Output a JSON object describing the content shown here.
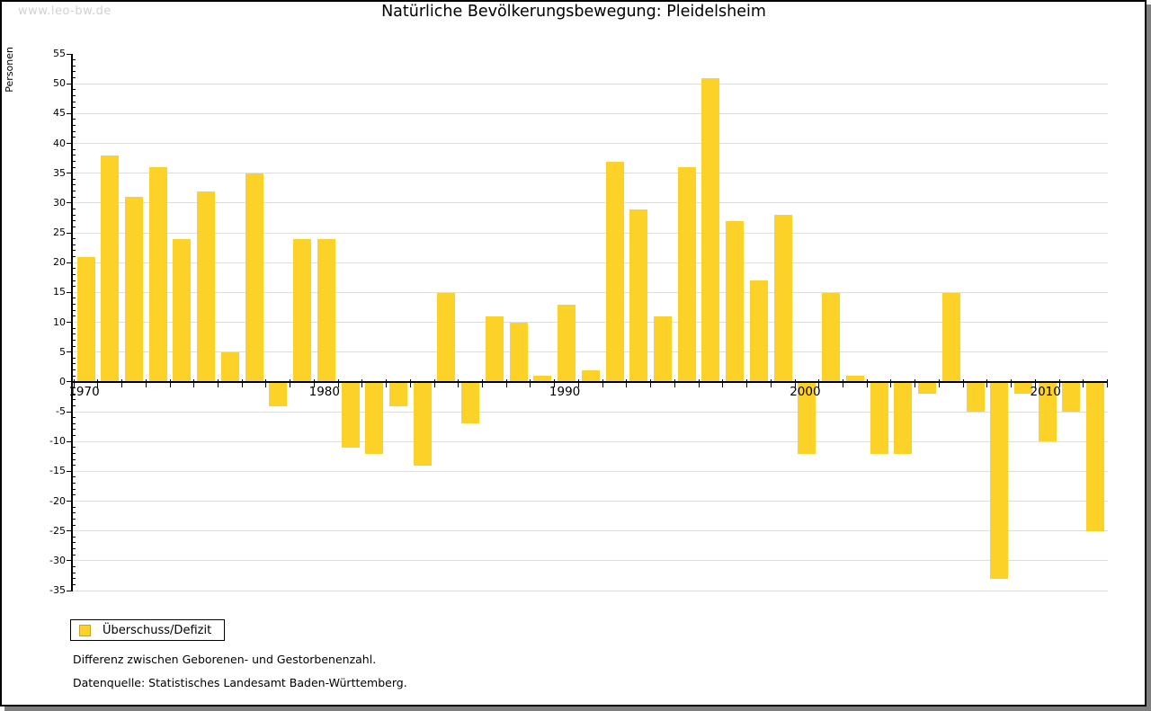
{
  "watermark": "www.leo-bw.de",
  "title": "Natürliche Bevölkerungsbewegung: Pleidelsheim",
  "legend": {
    "label": "Überschuss/Defizit",
    "swatch_color": "#fcd228",
    "swatch_border_color": "#c9a227"
  },
  "footnotes": [
    "Differenz zwischen Geborenen- und Gestorbenenzahl.",
    "Datenquelle: Statistisches Landesamt Baden-Württemberg."
  ],
  "colors": {
    "bar": "#fcd228",
    "gridline": "#dddddd",
    "axis": "#000000",
    "watermark_text": "#d2d2d2",
    "frame_shadow": "#7f7f7f"
  },
  "chart_data": {
    "type": "bar",
    "title": "Natürliche Bevölkerungsbewegung: Pleidelsheim",
    "xlabel": "",
    "ylabel": "Personen",
    "series_name": "Überschuss/Defizit",
    "x": [
      1970,
      1971,
      1972,
      1973,
      1974,
      1975,
      1976,
      1977,
      1978,
      1979,
      1980,
      1981,
      1982,
      1983,
      1984,
      1985,
      1986,
      1987,
      1988,
      1989,
      1990,
      1991,
      1992,
      1993,
      1994,
      1995,
      1996,
      1997,
      1998,
      1999,
      2000,
      2001,
      2002,
      2003,
      2004,
      2005,
      2006,
      2007,
      2008,
      2009,
      2010,
      2011,
      2012
    ],
    "values": [
      21,
      38,
      31,
      36,
      24,
      32,
      5,
      35,
      -4,
      24,
      24,
      -11,
      -12,
      -4,
      -14,
      15,
      -7,
      11,
      10,
      1,
      13,
      2,
      37,
      29,
      11,
      36,
      51,
      27,
      17,
      28,
      -12,
      15,
      1,
      -12,
      -12,
      -2,
      15,
      -5,
      -33,
      -2,
      -10,
      -5,
      -25
    ],
    "ylim": [
      -35,
      55
    ],
    "ytick_step": 5,
    "ytick_minor_step": 1,
    "xtick_labels": [
      1970,
      1980,
      1990,
      2000,
      2010
    ],
    "grid": true,
    "legend_position": "bottom-left"
  }
}
